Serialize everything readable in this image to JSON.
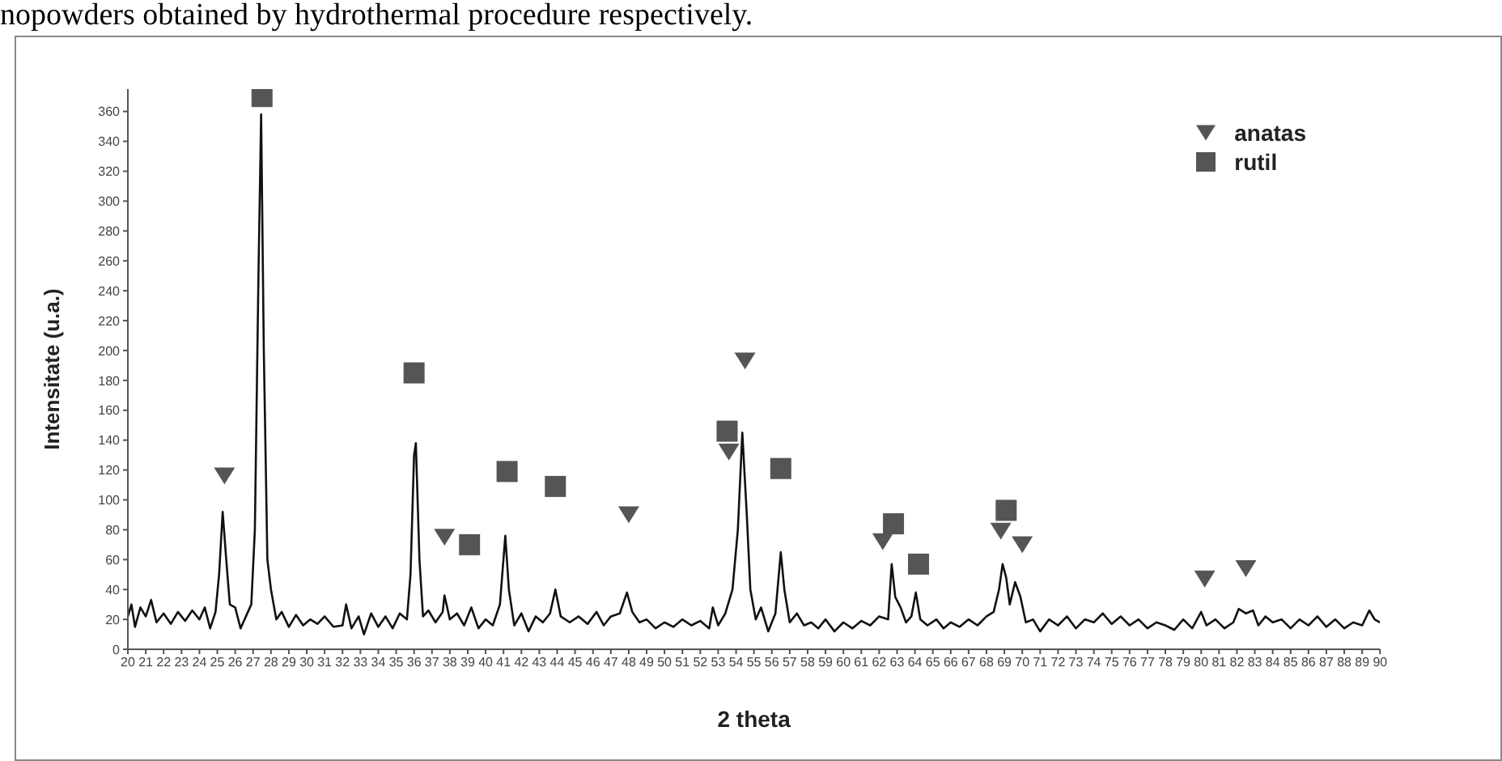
{
  "chart_data": {
    "type": "line",
    "annotations": [
      "nopowders obtained by hydrothermal procedure respectively."
    ],
    "xlabel": "2 theta",
    "ylabel": "Intensitate (u.a.)",
    "xlim": [
      20,
      90
    ],
    "xticks": [
      20,
      21,
      22,
      23,
      24,
      25,
      26,
      27,
      28,
      29,
      30,
      31,
      32,
      33,
      34,
      35,
      36,
      37,
      38,
      39,
      40,
      41,
      42,
      43,
      44,
      45,
      46,
      47,
      48,
      49,
      50,
      51,
      52,
      53,
      54,
      55,
      56,
      57,
      58,
      59,
      60,
      61,
      62,
      63,
      64,
      65,
      66,
      67,
      68,
      69,
      70,
      71,
      72,
      73,
      74,
      75,
      76,
      77,
      78,
      79,
      80,
      81,
      82,
      83,
      84,
      85,
      86,
      87,
      88,
      89,
      90
    ],
    "ylim": [
      0,
      375
    ],
    "yticks": [
      0,
      20,
      40,
      60,
      80,
      100,
      120,
      140,
      160,
      180,
      200,
      220,
      240,
      260,
      280,
      300,
      320,
      340,
      360
    ],
    "legend": "top right",
    "series": [
      {
        "color": "#111111",
        "marker": "none",
        "x": [
          20,
          20.2,
          20.4,
          20.7,
          21,
          21.3,
          21.6,
          22,
          22.4,
          22.8,
          23.2,
          23.6,
          24,
          24.3,
          24.6,
          24.9,
          25.1,
          25.3,
          25.5,
          25.7,
          26,
          26.3,
          26.6,
          26.9,
          27.1,
          27.3,
          27.45,
          27.6,
          27.8,
          28,
          28.3,
          28.6,
          29,
          29.4,
          29.8,
          30.2,
          30.6,
          31,
          31.5,
          32,
          32.2,
          32.5,
          32.9,
          33.2,
          33.6,
          34,
          34.4,
          34.8,
          35.2,
          35.6,
          35.8,
          36,
          36.1,
          36.3,
          36.5,
          36.8,
          37.2,
          37.6,
          37.7,
          38,
          38.4,
          38.8,
          39.2,
          39.6,
          40,
          40.4,
          40.8,
          41.1,
          41.3,
          41.6,
          42,
          42.4,
          42.8,
          43.2,
          43.6,
          43.9,
          44.2,
          44.7,
          45.2,
          45.7,
          46.2,
          46.6,
          47,
          47.5,
          47.9,
          48.2,
          48.6,
          49,
          49.5,
          50,
          50.5,
          51,
          51.5,
          52,
          52.5,
          52.7,
          53,
          53.4,
          53.8,
          54.1,
          54.35,
          54.6,
          54.8,
          55.1,
          55.4,
          55.8,
          56.2,
          56.5,
          56.7,
          57,
          57.4,
          57.8,
          58.2,
          58.6,
          59,
          59.5,
          60,
          60.5,
          61,
          61.5,
          62,
          62.5,
          62.7,
          62.9,
          63.2,
          63.5,
          63.8,
          64.05,
          64.3,
          64.7,
          65.2,
          65.6,
          66,
          66.5,
          67,
          67.5,
          68,
          68.4,
          68.7,
          68.9,
          69.1,
          69.3,
          69.6,
          69.9,
          70.2,
          70.6,
          71,
          71.5,
          72,
          72.5,
          73,
          73.5,
          74,
          74.5,
          75,
          75.5,
          76,
          76.5,
          77,
          77.5,
          78,
          78.5,
          79,
          79.5,
          80,
          80.3,
          80.8,
          81.3,
          81.8,
          82.1,
          82.5,
          82.9,
          83.2,
          83.6,
          84,
          84.5,
          85,
          85.5,
          86,
          86.5,
          87,
          87.5,
          88,
          88.5,
          89,
          89.4,
          89.7,
          90
        ],
        "values": [
          22,
          30,
          15,
          28,
          22,
          33,
          18,
          24,
          17,
          25,
          19,
          26,
          20,
          28,
          14,
          25,
          50,
          92,
          60,
          30,
          28,
          14,
          22,
          30,
          80,
          250,
          358,
          200,
          60,
          40,
          20,
          25,
          15,
          23,
          16,
          20,
          17,
          22,
          15,
          16,
          30,
          14,
          22,
          10,
          24,
          15,
          22,
          14,
          24,
          20,
          50,
          130,
          138,
          60,
          22,
          26,
          18,
          25,
          36,
          20,
          24,
          16,
          28,
          14,
          20,
          16,
          30,
          76,
          40,
          16,
          24,
          12,
          22,
          18,
          24,
          40,
          22,
          18,
          22,
          17,
          25,
          16,
          22,
          24,
          38,
          25,
          18,
          20,
          14,
          18,
          15,
          20,
          16,
          19,
          14,
          28,
          16,
          24,
          40,
          80,
          145,
          90,
          40,
          20,
          28,
          12,
          24,
          65,
          40,
          18,
          24,
          16,
          18,
          14,
          20,
          12,
          18,
          14,
          19,
          16,
          22,
          20,
          57,
          35,
          28,
          18,
          22,
          38,
          20,
          16,
          20,
          14,
          18,
          15,
          20,
          16,
          22,
          25,
          40,
          57,
          48,
          30,
          45,
          35,
          18,
          20,
          12,
          20,
          16,
          22,
          14,
          20,
          18,
          24,
          17,
          22,
          16,
          20,
          14,
          18,
          16,
          13,
          20,
          14,
          25,
          16,
          20,
          14,
          18,
          27,
          24,
          26,
          16,
          22,
          18,
          20,
          14,
          20,
          16,
          22,
          15,
          20,
          14,
          18,
          16,
          26,
          20,
          18
        ]
      },
      {
        "type": "scatter",
        "name": "anatas",
        "color": "#555555",
        "marker": "triangle",
        "x": [
          25.4,
          37.7,
          48.0,
          53.6,
          54.5,
          62.2,
          68.8,
          70.0,
          80.2,
          82.5
        ],
        "values": [
          116,
          75,
          90,
          132,
          193,
          72,
          79,
          70,
          47,
          54
        ]
      },
      {
        "type": "scatter",
        "name": "rutil",
        "color": "#555555",
        "marker": "square",
        "x": [
          27.5,
          36.0,
          39.1,
          41.2,
          43.9,
          53.5,
          56.5,
          62.8,
          64.2,
          69.1
        ],
        "values": [
          370,
          185,
          70,
          119,
          109,
          146,
          121,
          84,
          57,
          93
        ]
      }
    ]
  }
}
